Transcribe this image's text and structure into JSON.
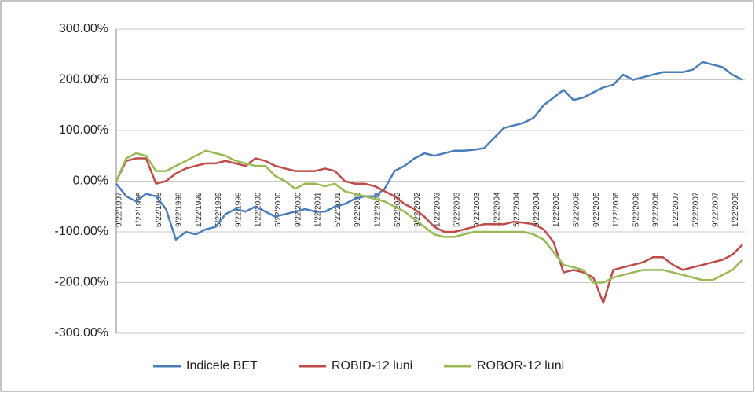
{
  "chart_data": {
    "type": "line",
    "categories": [
      "9/22/1997",
      null,
      "1/22/1998",
      null,
      "5/22/1998",
      null,
      "9/22/1998",
      null,
      "1/22/1999",
      null,
      "5/22/1999",
      null,
      "9/22/1999",
      null,
      "1/22/2000",
      null,
      "5/22/2000",
      null,
      "9/22/2000",
      null,
      "1/22/2001",
      null,
      "5/22/2001",
      null,
      "9/22/2001",
      null,
      "1/22/2002",
      null,
      "5/22/2002",
      null,
      "9/22/2002",
      null,
      "1/22/2003",
      null,
      "5/22/2003",
      null,
      "9/22/2003",
      null,
      "1/22/2004",
      null,
      "5/22/2004",
      null,
      "9/22/2004",
      null,
      "1/22/2005",
      null,
      "5/22/2005",
      null,
      "9/22/2005",
      null,
      "1/22/2006",
      null,
      "5/22/2006",
      null,
      "9/22/2006",
      null,
      "1/22/2007",
      null,
      "5/22/2007",
      null,
      "9/22/2007",
      null,
      "1/22/2008",
      null
    ],
    "series": [
      {
        "name": "Indicele BET",
        "color": "#4a7ebb",
        "values": [
          -5,
          -30,
          -40,
          -25,
          -30,
          -55,
          -115,
          -100,
          -105,
          -95,
          -90,
          -65,
          -55,
          -60,
          -50,
          -60,
          -70,
          -65,
          -60,
          -55,
          -60,
          -60,
          -50,
          -45,
          -35,
          -30,
          -30,
          -15,
          20,
          30,
          45,
          55,
          50,
          55,
          60,
          60,
          62,
          65,
          85,
          105,
          110,
          115,
          125,
          150,
          165,
          180,
          160,
          165,
          175,
          185,
          190,
          210,
          200,
          205,
          210,
          215,
          215,
          215,
          220,
          235,
          230,
          225,
          210,
          200
        ]
      },
      {
        "name": "ROBID-12 luni",
        "color": "#be4b48",
        "values": [
          0,
          40,
          45,
          45,
          -5,
          0,
          15,
          25,
          30,
          35,
          35,
          40,
          35,
          30,
          45,
          40,
          30,
          25,
          20,
          20,
          20,
          25,
          20,
          0,
          -5,
          -5,
          -10,
          -20,
          -30,
          -45,
          -55,
          -70,
          -90,
          -100,
          -100,
          -95,
          -90,
          -85,
          -85,
          -85,
          -80,
          -82,
          -85,
          -95,
          -120,
          -180,
          -175,
          -180,
          -190,
          -240,
          -175,
          -170,
          -165,
          -160,
          -150,
          -150,
          -165,
          -175,
          -170,
          -165,
          -160,
          -155,
          -145,
          -125
        ]
      },
      {
        "name": "ROBOR-12 luni",
        "color": "#98b954",
        "values": [
          0,
          45,
          55,
          50,
          20,
          20,
          30,
          40,
          50,
          60,
          55,
          50,
          40,
          35,
          30,
          30,
          10,
          0,
          -15,
          -5,
          -5,
          -10,
          -5,
          -20,
          -25,
          -30,
          -35,
          -40,
          -50,
          -60,
          -75,
          -90,
          -105,
          -110,
          -110,
          -105,
          -100,
          -100,
          -100,
          -100,
          -100,
          -100,
          -105,
          -115,
          -140,
          -165,
          -170,
          -175,
          -200,
          -200,
          -190,
          -185,
          -180,
          -175,
          -175,
          -175,
          -180,
          -185,
          -190,
          -195,
          -195,
          -185,
          -175,
          -155
        ]
      }
    ],
    "ylim": [
      -300,
      300
    ],
    "yticks": [
      {
        "value": -300,
        "label": "-300.00%"
      },
      {
        "value": -200,
        "label": "-200.00%"
      },
      {
        "value": -100,
        "label": "-100.00%"
      },
      {
        "value": 0,
        "label": "0.00%"
      },
      {
        "value": 100,
        "label": "100.00%"
      },
      {
        "value": 200,
        "label": "200.00%"
      },
      {
        "value": 300,
        "label": "300.00%"
      }
    ],
    "grid": true,
    "legend": "bottom"
  }
}
